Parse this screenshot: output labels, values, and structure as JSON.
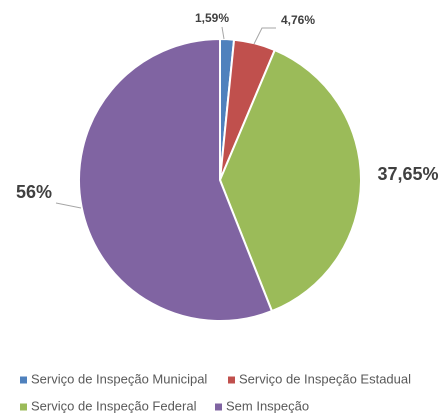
{
  "chart_data": {
    "type": "pie",
    "categories": [
      "Serviço de Inspeção Municipal",
      "Serviço de Inspeção Estadual",
      "Serviço de Inspeção Federal",
      "Sem Inspeção"
    ],
    "values": [
      1.59,
      4.76,
      37.65,
      56
    ],
    "value_labels": [
      "1,59%",
      "4,76%",
      "37,65%",
      "56%"
    ],
    "colors": [
      "#4f81bd",
      "#c0504d",
      "#9bbb59",
      "#8064a2"
    ],
    "legend": "bottom"
  }
}
